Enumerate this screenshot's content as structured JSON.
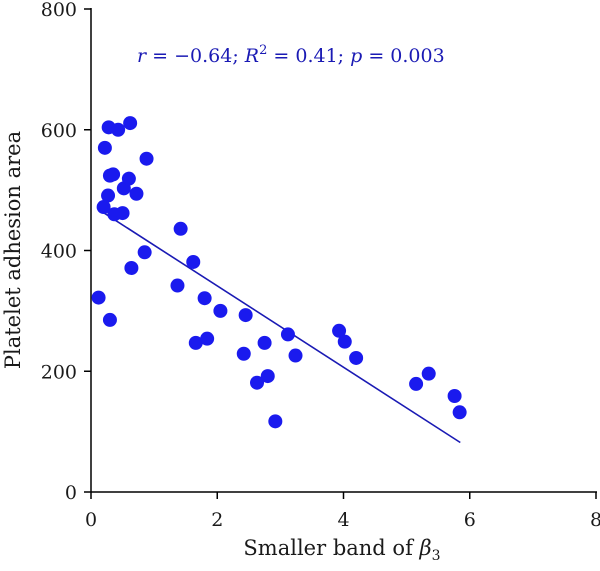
{
  "chart_data": {
    "type": "scatter",
    "xlabel_prefix": "Smaller band of ",
    "xlabel_symbol": "β",
    "xlabel_subscript": "3",
    "ylabel": "Platelet adhesion area",
    "xlim": [
      0,
      8
    ],
    "ylim": [
      0,
      800
    ],
    "xticks": [
      "0",
      "2",
      "4",
      "6",
      "8"
    ],
    "yticks": [
      "0",
      "200",
      "400",
      "600",
      "800"
    ],
    "grid": false,
    "annotation": {
      "r": "r",
      "r_eq": " = −0.64; ",
      "R": "R",
      "R_exp": "2",
      "R_eq": " = 0.41; ",
      "p": "p",
      "p_eq": " = 0.003"
    },
    "point_color": "#1a1aee",
    "line_color": "#1a1ab4",
    "points": [
      [
        0.12,
        322
      ],
      [
        0.2,
        472
      ],
      [
        0.22,
        570
      ],
      [
        0.27,
        491
      ],
      [
        0.28,
        604
      ],
      [
        0.3,
        524
      ],
      [
        0.3,
        285
      ],
      [
        0.35,
        526
      ],
      [
        0.37,
        460
      ],
      [
        0.43,
        600
      ],
      [
        0.5,
        462
      ],
      [
        0.52,
        503
      ],
      [
        0.6,
        519
      ],
      [
        0.62,
        611
      ],
      [
        0.64,
        371
      ],
      [
        0.72,
        494
      ],
      [
        0.85,
        397
      ],
      [
        0.88,
        552
      ],
      [
        1.37,
        342
      ],
      [
        1.42,
        436
      ],
      [
        1.62,
        381
      ],
      [
        1.66,
        247
      ],
      [
        1.8,
        321
      ],
      [
        1.84,
        254
      ],
      [
        2.05,
        300
      ],
      [
        2.42,
        229
      ],
      [
        2.45,
        293
      ],
      [
        2.63,
        181
      ],
      [
        2.75,
        247
      ],
      [
        2.8,
        192
      ],
      [
        2.92,
        117
      ],
      [
        3.12,
        261
      ],
      [
        3.24,
        226
      ],
      [
        3.93,
        267
      ],
      [
        4.02,
        249
      ],
      [
        4.2,
        222
      ],
      [
        5.15,
        179
      ],
      [
        5.35,
        196
      ],
      [
        5.76,
        159
      ],
      [
        5.84,
        132
      ]
    ],
    "regression_line": {
      "x": [
        0.15,
        5.85
      ],
      "y": [
        466,
        82
      ]
    }
  }
}
